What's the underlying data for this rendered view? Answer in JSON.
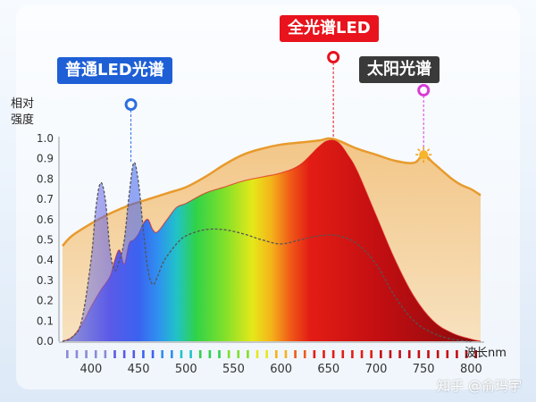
{
  "labels": {
    "normal_led": "普通LED光谱",
    "full_spectrum_led": "全光谱LED",
    "sunlight": "太阳光谱"
  },
  "watermark": "知乎 @俞玛宇",
  "colors": {
    "normal_led_tag": "#1e5fd6",
    "full_spectrum_tag": "#e8131c",
    "sunlight_tag": "#3a3a3a",
    "sun_curve": "#e89a2c",
    "sun_fill": "#f3c98e",
    "full_red": "#d90f14",
    "normal_curve": "#555555"
  },
  "chart_data": {
    "type": "area",
    "xlabel": "波长nm",
    "ylabel": "相对强度",
    "xlim": [
      370,
      810
    ],
    "ylim": [
      0,
      1.0
    ],
    "x_ticks": [
      400,
      450,
      500,
      550,
      600,
      650,
      700,
      750,
      800
    ],
    "y_ticks": [
      0.0,
      0.1,
      0.2,
      0.3,
      0.4,
      0.5,
      0.6,
      0.7,
      0.8,
      0.9,
      1.0
    ],
    "series": [
      {
        "name": "太阳光谱",
        "x": [
          370,
          380,
          400,
          420,
          440,
          460,
          480,
          500,
          520,
          540,
          560,
          580,
          600,
          620,
          640,
          650,
          660,
          680,
          700,
          720,
          740,
          750,
          760,
          780,
          790,
          800,
          810
        ],
        "y": [
          0.47,
          0.52,
          0.58,
          0.63,
          0.67,
          0.7,
          0.73,
          0.76,
          0.81,
          0.87,
          0.92,
          0.95,
          0.97,
          0.98,
          0.99,
          1.0,
          0.99,
          0.95,
          0.92,
          0.89,
          0.88,
          0.92,
          0.88,
          0.8,
          0.77,
          0.75,
          0.72
        ]
      },
      {
        "name": "全光谱LED",
        "x": [
          370,
          380,
          390,
          400,
          410,
          420,
          425,
          430,
          435,
          440,
          445,
          450,
          455,
          460,
          465,
          470,
          480,
          490,
          500,
          520,
          540,
          560,
          580,
          600,
          620,
          640,
          650,
          660,
          670,
          680,
          700,
          720,
          740,
          760,
          780,
          800,
          810
        ],
        "y": [
          0.0,
          0.02,
          0.08,
          0.17,
          0.25,
          0.32,
          0.4,
          0.45,
          0.38,
          0.48,
          0.5,
          0.53,
          0.58,
          0.6,
          0.55,
          0.54,
          0.6,
          0.66,
          0.68,
          0.73,
          0.76,
          0.79,
          0.81,
          0.83,
          0.87,
          0.96,
          0.99,
          0.98,
          0.92,
          0.84,
          0.62,
          0.4,
          0.22,
          0.1,
          0.04,
          0.01,
          0.0
        ]
      },
      {
        "name": "普通LED光谱",
        "x": [
          370,
          380,
          390,
          400,
          405,
          410,
          415,
          420,
          425,
          430,
          435,
          440,
          445,
          450,
          455,
          460,
          465,
          470,
          475,
          480,
          490,
          500,
          520,
          540,
          560,
          580,
          600,
          620,
          640,
          660,
          680,
          700,
          720,
          740,
          760,
          780,
          800
        ],
        "y": [
          0.0,
          0.02,
          0.1,
          0.4,
          0.65,
          0.78,
          0.7,
          0.45,
          0.35,
          0.4,
          0.5,
          0.72,
          0.88,
          0.78,
          0.55,
          0.35,
          0.28,
          0.32,
          0.38,
          0.42,
          0.48,
          0.52,
          0.55,
          0.55,
          0.53,
          0.5,
          0.48,
          0.5,
          0.52,
          0.52,
          0.48,
          0.38,
          0.22,
          0.1,
          0.04,
          0.01,
          0.0
        ]
      }
    ],
    "markers": [
      {
        "series": "普通LED光谱",
        "x": 442,
        "y": 0.88
      },
      {
        "series": "全光谱LED",
        "x": 655,
        "y": 1.0
      },
      {
        "series": "太阳光谱",
        "x": 750,
        "y": 0.92
      }
    ],
    "grid": false,
    "legend": "callout tags above markers"
  }
}
